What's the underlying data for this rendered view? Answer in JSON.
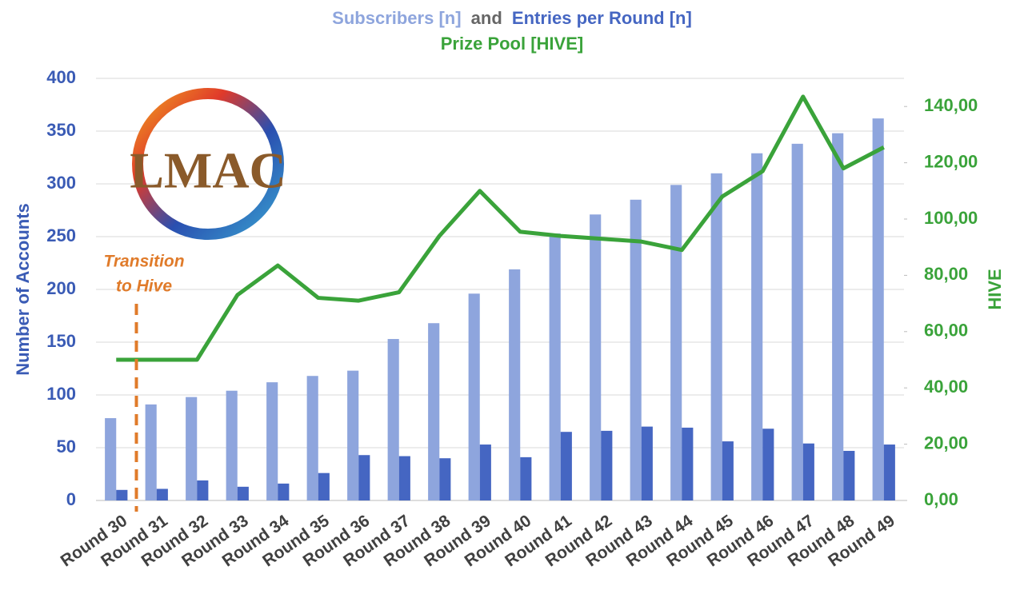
{
  "chart_data": {
    "type": "bar-line",
    "title": {
      "part1": "Subscribers [n]",
      "connector": "and",
      "part2": "Entries per Round [n]",
      "line2": "Prize Pool [HIVE]"
    },
    "logo_text": "LMAC",
    "annotation": {
      "lines": [
        "Transition",
        "to Hive"
      ],
      "color": "#e07b2a"
    },
    "y_label": "Number of Accounts",
    "y2_label": "HIVE",
    "categories": [
      "Round 30",
      "Round 31",
      "Round 32",
      "Round 33",
      "Round 34",
      "Round 35",
      "Round 36",
      "Round 37",
      "Round 38",
      "Round 39",
      "Round 40",
      "Round 41",
      "Round 42",
      "Round 43",
      "Round 44",
      "Round 45",
      "Round 46",
      "Round 47",
      "Round 48",
      "Round 49"
    ],
    "series": [
      {
        "name": "Subscribers [n]",
        "color": "#8ea5dd",
        "values": [
          78,
          91,
          98,
          104,
          112,
          118,
          123,
          153,
          168,
          196,
          219,
          253,
          271,
          285,
          299,
          310,
          329,
          338,
          348,
          362
        ]
      },
      {
        "name": "Entries per Round [n]",
        "color": "#4566c2",
        "values": [
          10,
          11,
          19,
          13,
          16,
          26,
          43,
          42,
          40,
          53,
          41,
          65,
          66,
          70,
          69,
          56,
          68,
          54,
          47,
          53
        ]
      },
      {
        "name": "Prize Pool [HIVE]",
        "color": "#3aa33a",
        "axis": "y2",
        "values": [
          50,
          50,
          50,
          73,
          83.5,
          72,
          71,
          74,
          94,
          110,
          95.5,
          94,
          93,
          92,
          89,
          108,
          117,
          143.5,
          118,
          125.5
        ]
      }
    ],
    "ylim": [
      0,
      400
    ],
    "yticks": [
      0,
      50,
      100,
      150,
      200,
      250,
      300,
      350,
      400
    ],
    "y2lim": [
      0,
      150
    ],
    "y2ticks": [
      {
        "value": 0,
        "label": "0,00"
      },
      {
        "value": 20,
        "label": "20,00"
      },
      {
        "value": 40,
        "label": "40,00"
      },
      {
        "value": 60,
        "label": "60,00"
      },
      {
        "value": 80,
        "label": "80,00"
      },
      {
        "value": 100,
        "label": "100,00"
      },
      {
        "value": 120,
        "label": "120,00"
      },
      {
        "value": 140,
        "label": "140,00"
      }
    ],
    "grid": true
  }
}
